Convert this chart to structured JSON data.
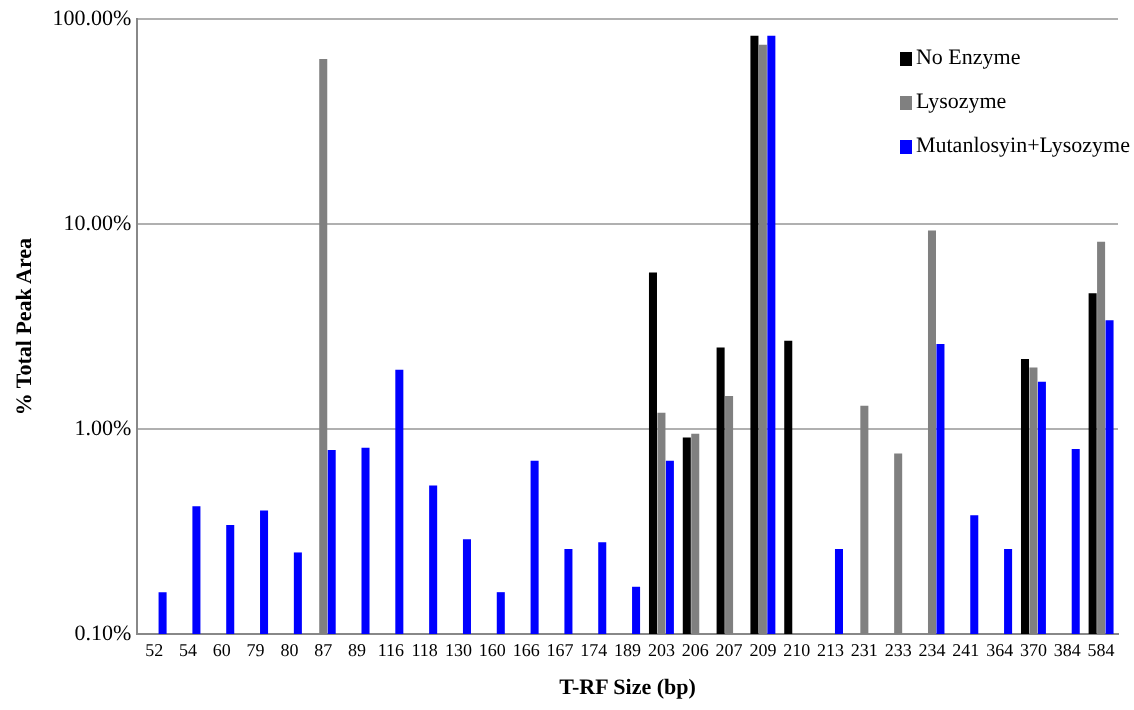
{
  "chart_data": {
    "type": "bar",
    "xlabel": "T-RF Size (bp)",
    "ylabel": "% Total Peak Area",
    "categories": [
      "52",
      "54",
      "60",
      "79",
      "80",
      "87",
      "89",
      "116",
      "118",
      "130",
      "160",
      "166",
      "167",
      "174",
      "189",
      "203",
      "206",
      "207",
      "209",
      "210",
      "213",
      "231",
      "233",
      "234",
      "241",
      "364",
      "370",
      "384",
      "584"
    ],
    "series": [
      {
        "name": "No Enzyme",
        "color": "#000000",
        "values": [
          null,
          null,
          null,
          null,
          null,
          null,
          null,
          null,
          null,
          null,
          null,
          null,
          null,
          null,
          null,
          5.8,
          0.91,
          2.5,
          83,
          2.7,
          null,
          null,
          null,
          null,
          null,
          null,
          2.2,
          null,
          4.6
        ]
      },
      {
        "name": "Lysozyme",
        "color": "#808080",
        "values": [
          null,
          null,
          null,
          null,
          null,
          64,
          null,
          null,
          null,
          null,
          null,
          null,
          null,
          null,
          null,
          1.2,
          0.95,
          1.45,
          75,
          null,
          null,
          1.3,
          0.76,
          9.3,
          null,
          null,
          2.0,
          null,
          8.2
        ]
      },
      {
        "name": "Mutanlosyin+Lysozyme",
        "color": "#0000ff",
        "values": [
          0.16,
          0.42,
          0.34,
          0.4,
          0.25,
          0.79,
          0.81,
          1.95,
          0.53,
          0.29,
          0.16,
          0.7,
          0.26,
          0.28,
          0.17,
          0.7,
          null,
          null,
          83,
          null,
          0.26,
          null,
          null,
          2.6,
          0.38,
          0.26,
          1.7,
          0.8,
          3.4
        ]
      }
    ],
    "log": "y",
    "ylim": [
      0.1,
      100
    ],
    "yticks": [
      {
        "value": 0.1,
        "label": "0.10%"
      },
      {
        "value": 1,
        "label": "1.00%"
      },
      {
        "value": 10,
        "label": "10.00%"
      },
      {
        "value": 100,
        "label": "100.00%"
      }
    ],
    "grid": "y",
    "legend": "top right"
  }
}
